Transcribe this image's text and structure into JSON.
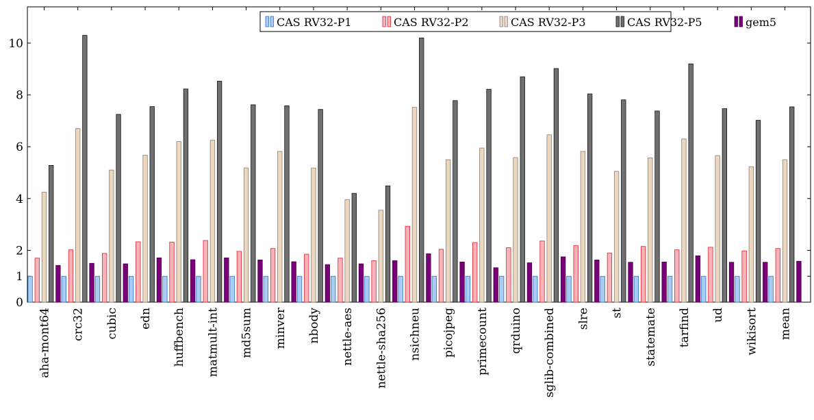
{
  "chart_data": {
    "type": "bar",
    "title": "",
    "xlabel": "",
    "ylabel": "",
    "ylim": [
      0,
      11.4
    ],
    "yticks": [
      0,
      1,
      2,
      4,
      6,
      8,
      10
    ],
    "ytick_labels": [
      "0",
      "1",
      "2",
      "4",
      "6",
      "8",
      "10"
    ],
    "grid": false,
    "legend_position": "top-right",
    "categories": [
      "aha-mont64",
      "crc32",
      "cubic",
      "edn",
      "huffbench",
      "matmult-int",
      "md5sum",
      "minver",
      "nbody",
      "nettle-aes",
      "nettle-sha256",
      "nsichneu",
      "picojpeg",
      "primecount",
      "qrduino",
      "sglib-combined",
      "slre",
      "st",
      "statemate",
      "tarfind",
      "ud",
      "wikisort",
      "mean"
    ],
    "series": [
      {
        "name": "CAS RV32-P1",
        "fill": "#a9cdf2",
        "stroke": "#2a6fc9",
        "values": [
          1,
          1,
          1,
          1,
          1,
          1,
          1,
          1,
          1,
          1,
          1,
          1,
          1,
          1,
          1,
          1,
          1,
          1,
          1,
          1,
          1,
          1,
          1
        ]
      },
      {
        "name": "CAS RV32-P2",
        "fill": "#f8b3b8",
        "stroke": "#e3202e",
        "values": [
          1.7,
          2.02,
          1.88,
          2.33,
          2.32,
          2.38,
          1.96,
          2.07,
          1.85,
          1.7,
          1.6,
          2.93,
          2.04,
          2.3,
          2.1,
          2.36,
          2.18,
          1.9,
          2.15,
          2.02,
          2.12,
          1.98,
          2.07
        ]
      },
      {
        "name": "CAS RV32-P3",
        "fill": "#ecd7c0",
        "stroke": "#8a7f74",
        "values": [
          4.25,
          6.7,
          5.1,
          5.67,
          6.2,
          6.25,
          5.18,
          5.82,
          5.18,
          3.96,
          3.55,
          7.52,
          5.5,
          5.95,
          5.58,
          6.46,
          5.82,
          5.05,
          5.57,
          6.3,
          5.66,
          5.23,
          5.5
        ]
      },
      {
        "name": "CAS RV32-P5",
        "fill": "#707070",
        "stroke": "#111111",
        "values": [
          5.28,
          10.3,
          7.25,
          7.55,
          8.23,
          8.53,
          7.62,
          7.58,
          7.44,
          4.2,
          4.49,
          10.2,
          7.78,
          8.22,
          8.7,
          9.02,
          8.04,
          7.81,
          7.38,
          9.2,
          7.47,
          7.02,
          7.54
        ]
      },
      {
        "name": "gem5",
        "fill": "#7a007a",
        "stroke": "#4a004a",
        "values": [
          1.42,
          1.5,
          1.48,
          1.71,
          1.64,
          1.71,
          1.63,
          1.56,
          1.45,
          1.48,
          1.6,
          1.87,
          1.55,
          1.33,
          1.52,
          1.75,
          1.63,
          1.54,
          1.55,
          1.79,
          1.54,
          1.54,
          1.58
        ]
      }
    ]
  }
}
